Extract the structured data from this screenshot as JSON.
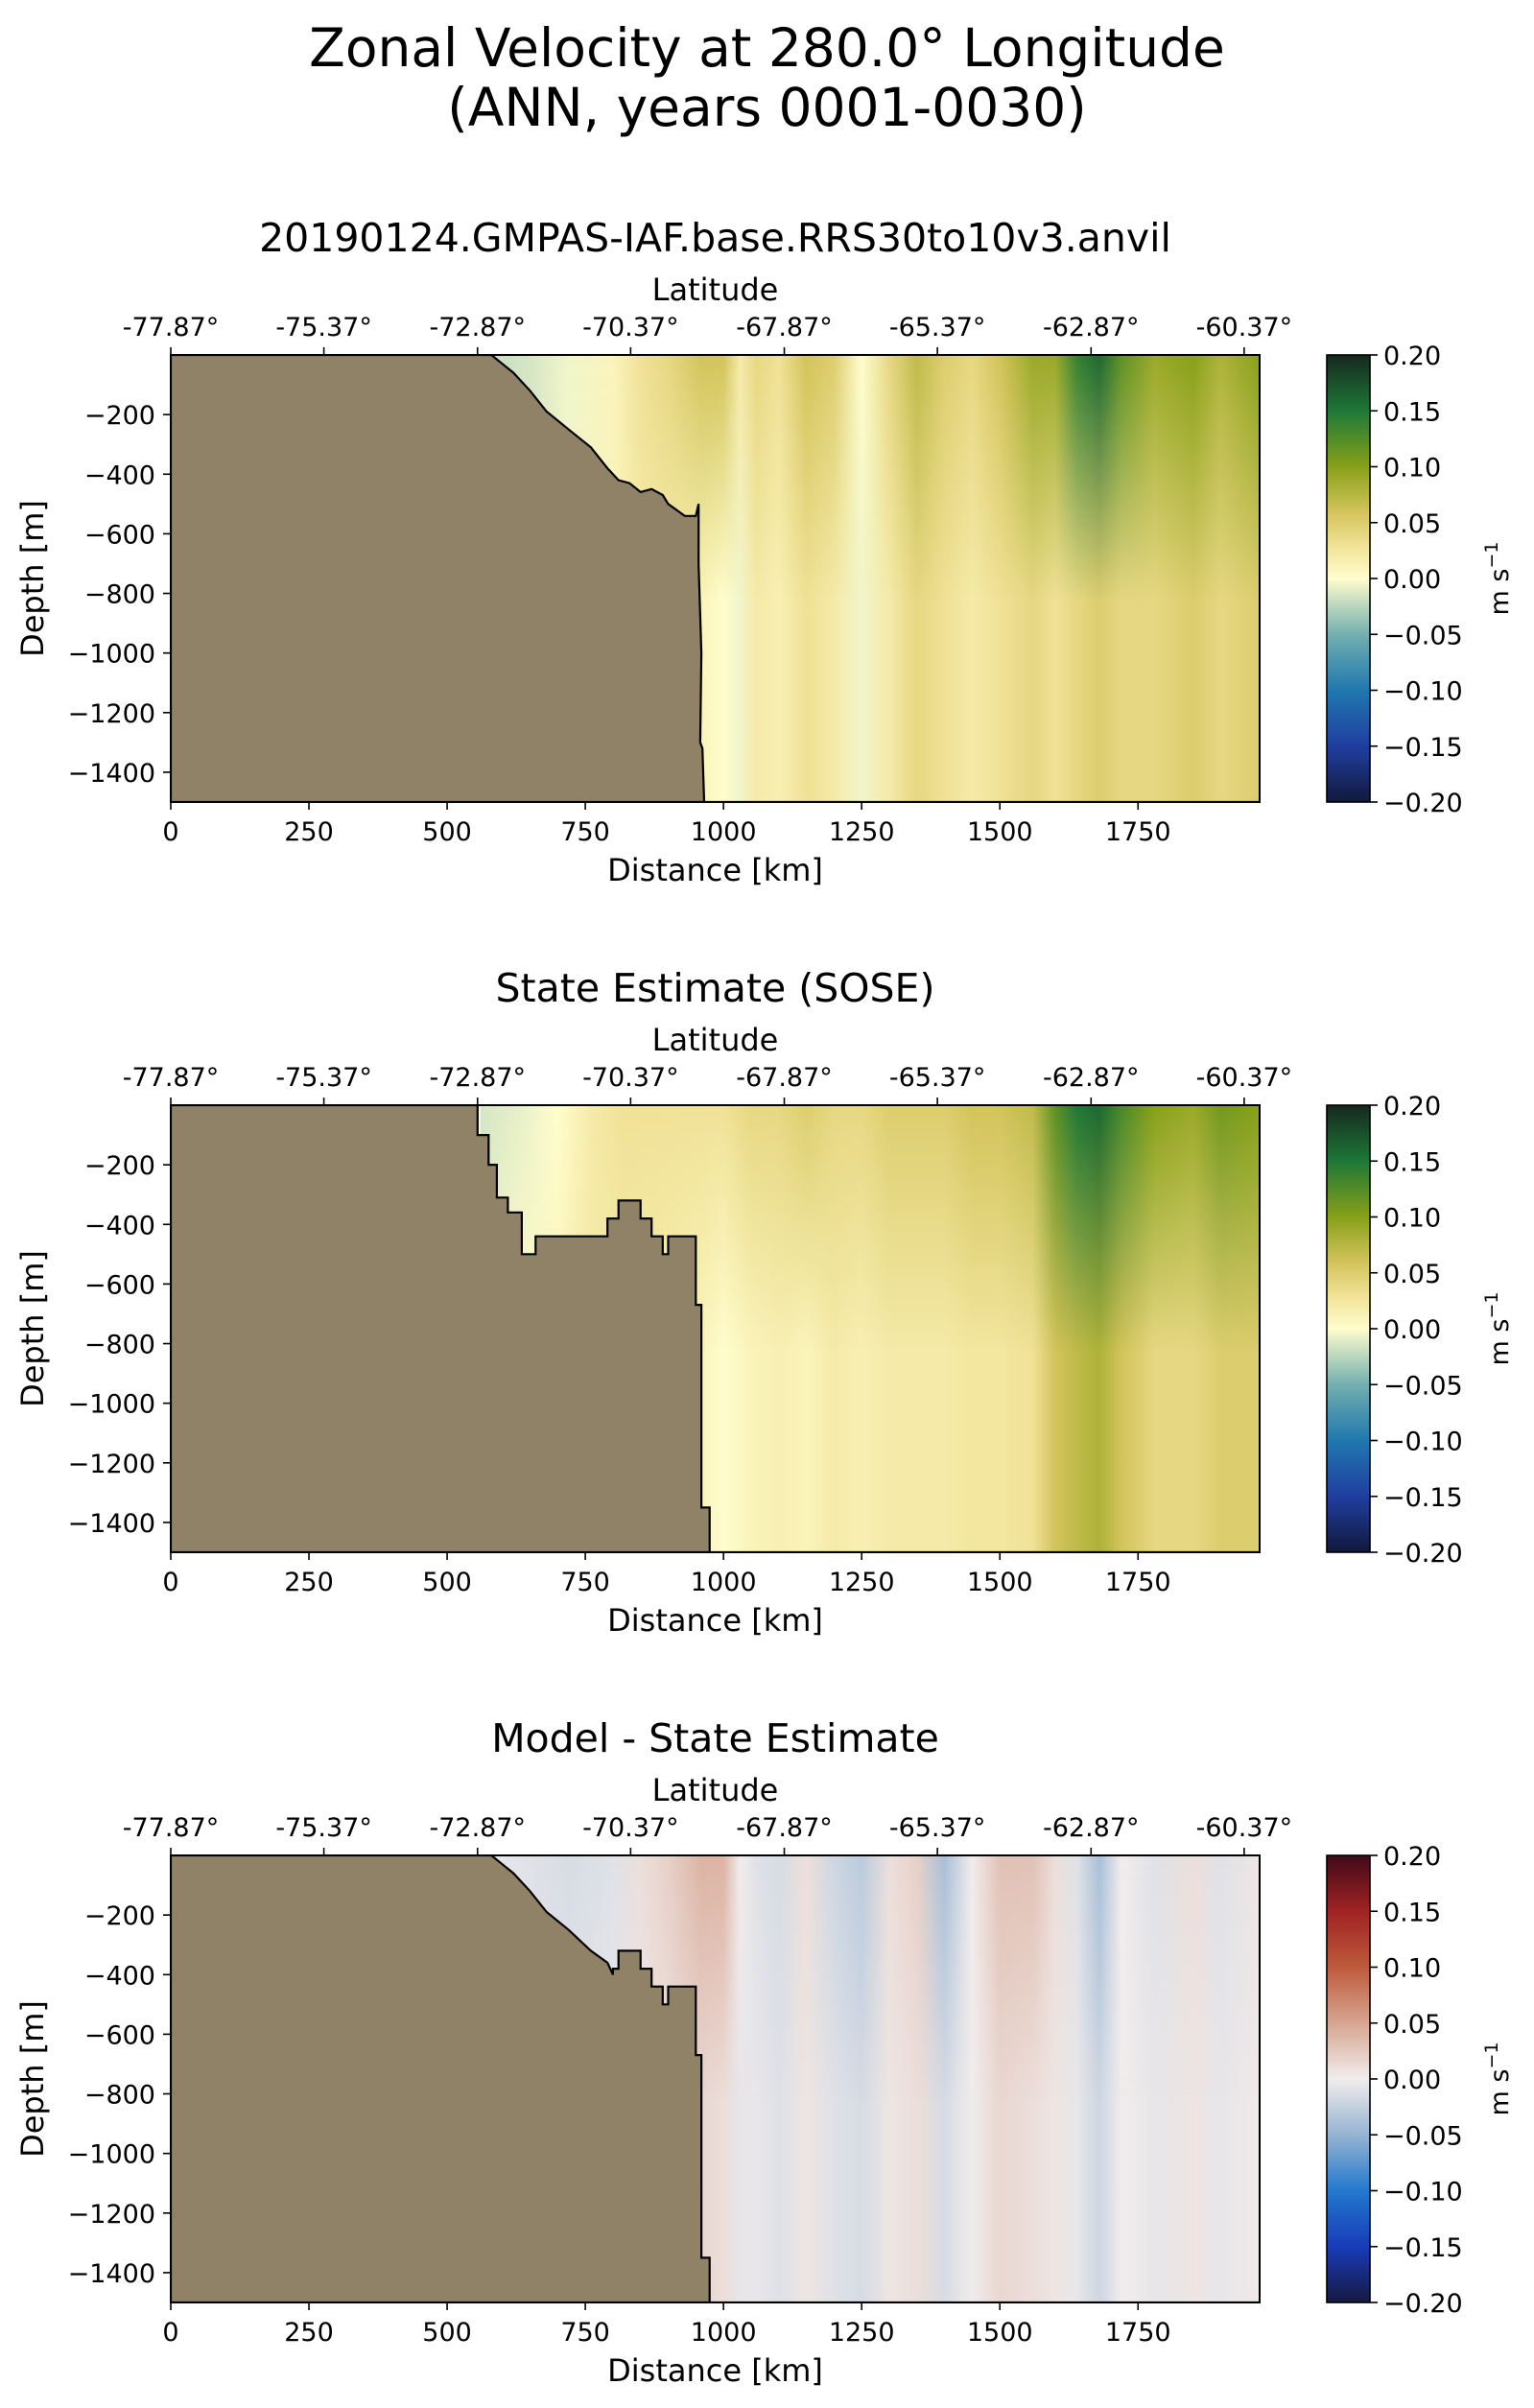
{
  "figure": {
    "title_line1": "Zonal Velocity at 280.0° Longitude",
    "title_line2": "(ANN, years 0001-0030)"
  },
  "chart_data": [
    {
      "type": "heatmap",
      "title": "20190124.GMPAS-IAF.base.RRS30to10v3.anvil",
      "xlabel": "Distance [km]",
      "ylabel": "Depth [m]",
      "top_xlabel": "Latitude",
      "xlim": [
        0,
        1970
      ],
      "ylim": [
        -1500,
        0
      ],
      "xticks": [
        0,
        250,
        500,
        750,
        1000,
        1250,
        1500,
        1750
      ],
      "xtick_labels": [
        "0",
        "250",
        "500",
        "750",
        "1000",
        "1250",
        "1500",
        "1750"
      ],
      "yticks": [
        -200,
        -400,
        -600,
        -800,
        -1000,
        -1200,
        -1400
      ],
      "ytick_labels": [
        "−200",
        "−400",
        "−600",
        "−800",
        "−1000",
        "−1200",
        "−1400"
      ],
      "top_ticks_km": [
        0,
        277,
        555,
        832,
        1110,
        1387,
        1665,
        1942
      ],
      "top_tick_labels": [
        "-77.87°",
        "-75.37°",
        "-72.87°",
        "-70.37°",
        "-67.87°",
        "-65.37°",
        "-62.87°",
        "-60.37°"
      ],
      "colorbar": {
        "label": "m s",
        "label_sup": "−1",
        "range": [
          -0.2,
          0.2
        ],
        "colormap": "delta",
        "ticks": [
          0.2,
          0.15,
          0.1,
          0.05,
          0.0,
          -0.05,
          -0.1,
          -0.15,
          -0.2
        ],
        "tick_labels": [
          "0.20",
          "0.15",
          "0.10",
          "0.05",
          "0.00",
          "−0.05",
          "−0.10",
          "−0.15",
          "−0.20"
        ]
      },
      "land_color": "#8f8267",
      "field_x_km": [
        580,
        650,
        720,
        800,
        850,
        900,
        960,
        1000,
        1030,
        1060,
        1100,
        1150,
        1200,
        1250,
        1300,
        1350,
        1400,
        1450,
        1500,
        1560,
        1600,
        1640,
        1680,
        1720,
        1780,
        1850,
        1900,
        1970
      ],
      "field_surface_ms": [
        -0.02,
        -0.015,
        -0.005,
        0.01,
        0.03,
        0.04,
        0.06,
        0.06,
        0.02,
        0.04,
        0.03,
        0.06,
        0.05,
        0.0,
        0.04,
        0.07,
        0.05,
        0.04,
        0.06,
        0.09,
        0.09,
        0.14,
        0.16,
        0.12,
        0.09,
        0.1,
        0.08,
        0.1
      ],
      "field_deep_ms": [
        -0.02,
        -0.015,
        -0.005,
        0.01,
        0.02,
        0.02,
        0.01,
        0.0,
        -0.005,
        0.02,
        0.015,
        0.03,
        0.02,
        -0.005,
        0.02,
        0.04,
        0.03,
        0.02,
        0.03,
        0.04,
        0.03,
        0.04,
        0.05,
        0.04,
        0.04,
        0.05,
        0.04,
        0.05
      ],
      "bathymetry_km": [
        0,
        580,
        600,
        620,
        650,
        680,
        720,
        760,
        790,
        810,
        830,
        850,
        870,
        890,
        900,
        930,
        950,
        955,
        955,
        960,
        958,
        962,
        965,
        1970
      ],
      "bathymetry_depth_m": [
        0,
        0,
        -30,
        -60,
        -120,
        -190,
        -250,
        -310,
        -380,
        -420,
        -430,
        -460,
        -450,
        -470,
        -500,
        -540,
        -540,
        -500,
        -700,
        -1000,
        -1300,
        -1320,
        -1500,
        -1500
      ]
    },
    {
      "type": "heatmap",
      "title": "State Estimate (SOSE)",
      "xlabel": "Distance [km]",
      "ylabel": "Depth [m]",
      "top_xlabel": "Latitude",
      "xlim": [
        0,
        1970
      ],
      "ylim": [
        -1500,
        0
      ],
      "xticks": [
        0,
        250,
        500,
        750,
        1000,
        1250,
        1500,
        1750
      ],
      "xtick_labels": [
        "0",
        "250",
        "500",
        "750",
        "1000",
        "1250",
        "1500",
        "1750"
      ],
      "yticks": [
        -200,
        -400,
        -600,
        -800,
        -1000,
        -1200,
        -1400
      ],
      "ytick_labels": [
        "−200",
        "−400",
        "−600",
        "−800",
        "−1000",
        "−1200",
        "−1400"
      ],
      "top_ticks_km": [
        0,
        277,
        555,
        832,
        1110,
        1387,
        1665,
        1942
      ],
      "top_tick_labels": [
        "-77.87°",
        "-75.37°",
        "-72.87°",
        "-70.37°",
        "-67.87°",
        "-65.37°",
        "-62.87°",
        "-60.37°"
      ],
      "colorbar": {
        "label": "m s",
        "label_sup": "−1",
        "range": [
          -0.2,
          0.2
        ],
        "colormap": "delta",
        "ticks": [
          0.2,
          0.15,
          0.1,
          0.05,
          0.0,
          -0.05,
          -0.1,
          -0.15,
          -0.2
        ],
        "tick_labels": [
          "0.20",
          "0.15",
          "0.10",
          "0.05",
          "0.00",
          "−0.05",
          "−0.10",
          "−0.15",
          "−0.20"
        ]
      },
      "land_color": "#8f8267",
      "field_x_km": [
        560,
        620,
        700,
        760,
        820,
        900,
        960,
        1000,
        1050,
        1100,
        1150,
        1200,
        1250,
        1300,
        1350,
        1400,
        1450,
        1500,
        1560,
        1600,
        1640,
        1680,
        1720,
        1780,
        1850,
        1900,
        1970
      ],
      "field_surface_ms": [
        -0.015,
        -0.01,
        0.0,
        0.02,
        0.03,
        0.03,
        0.03,
        0.03,
        0.04,
        0.04,
        0.05,
        0.04,
        0.04,
        0.05,
        0.05,
        0.05,
        0.06,
        0.06,
        0.07,
        0.12,
        0.15,
        0.16,
        0.13,
        0.1,
        0.09,
        0.11,
        0.1
      ],
      "field_deep_ms": [
        -0.01,
        0.0,
        0.01,
        0.02,
        0.02,
        0.015,
        0.01,
        0.0,
        0.01,
        0.015,
        0.01,
        0.02,
        0.015,
        0.02,
        0.02,
        0.02,
        0.025,
        0.025,
        0.03,
        0.06,
        0.07,
        0.08,
        0.06,
        0.04,
        0.04,
        0.05,
        0.05
      ],
      "bathymetry_km": [
        0,
        555,
        555,
        575,
        575,
        590,
        590,
        610,
        610,
        635,
        635,
        660,
        660,
        790,
        790,
        810,
        810,
        850,
        850,
        870,
        870,
        890,
        890,
        900,
        900,
        950,
        950,
        960,
        960,
        975,
        975,
        1970
      ],
      "bathymetry_depth_m": [
        0,
        0,
        -100,
        -100,
        -200,
        -200,
        -310,
        -310,
        -360,
        -360,
        -500,
        -500,
        -440,
        -440,
        -380,
        -380,
        -320,
        -320,
        -380,
        -380,
        -440,
        -440,
        -500,
        -500,
        -440,
        -440,
        -670,
        -670,
        -1350,
        -1350,
        -1500,
        -1500
      ]
    },
    {
      "type": "heatmap",
      "title": "Model - State Estimate",
      "xlabel": "Distance [km]",
      "ylabel": "Depth [m]",
      "top_xlabel": "Latitude",
      "xlim": [
        0,
        1970
      ],
      "ylim": [
        -1500,
        0
      ],
      "xticks": [
        0,
        250,
        500,
        750,
        1000,
        1250,
        1500,
        1750
      ],
      "xtick_labels": [
        "0",
        "250",
        "500",
        "750",
        "1000",
        "1250",
        "1500",
        "1750"
      ],
      "yticks": [
        -200,
        -400,
        -600,
        -800,
        -1000,
        -1200,
        -1400
      ],
      "ytick_labels": [
        "−200",
        "−400",
        "−600",
        "−800",
        "−1000",
        "−1200",
        "−1400"
      ],
      "top_ticks_km": [
        0,
        277,
        555,
        832,
        1110,
        1387,
        1665,
        1942
      ],
      "top_tick_labels": [
        "-77.87°",
        "-75.37°",
        "-72.87°",
        "-70.37°",
        "-67.87°",
        "-65.37°",
        "-62.87°",
        "-60.37°"
      ],
      "colorbar": {
        "label": "m s",
        "label_sup": "−1",
        "range": [
          -0.2,
          0.2
        ],
        "colormap": "balance",
        "ticks": [
          0.2,
          0.15,
          0.1,
          0.05,
          0.0,
          -0.05,
          -0.1,
          -0.15,
          -0.2
        ],
        "tick_labels": [
          "0.20",
          "0.15",
          "0.10",
          "0.05",
          "0.00",
          "−0.05",
          "−0.10",
          "−0.15",
          "−0.20"
        ]
      },
      "land_color": "#8f8267",
      "field_x_km": [
        580,
        650,
        720,
        800,
        850,
        900,
        960,
        1000,
        1030,
        1060,
        1100,
        1150,
        1200,
        1250,
        1300,
        1350,
        1400,
        1450,
        1500,
        1560,
        1600,
        1640,
        1680,
        1720,
        1780,
        1850,
        1900,
        1970
      ],
      "field_surface_ms": [
        -0.005,
        -0.01,
        -0.015,
        -0.01,
        0.01,
        0.02,
        0.04,
        0.04,
        0.0,
        -0.01,
        -0.015,
        0.01,
        -0.02,
        -0.03,
        0.01,
        0.02,
        -0.04,
        0.0,
        0.03,
        0.03,
        0.01,
        -0.01,
        -0.04,
        0.0,
        -0.01,
        0.01,
        -0.01,
        0.005
      ],
      "field_deep_ms": [
        -0.003,
        -0.005,
        -0.008,
        -0.005,
        0.005,
        0.01,
        0.015,
        0.01,
        -0.005,
        -0.005,
        -0.01,
        0.005,
        -0.01,
        -0.015,
        0.005,
        0.01,
        -0.015,
        0.0,
        0.015,
        0.01,
        0.005,
        -0.005,
        -0.02,
        0.0,
        -0.005,
        0.005,
        -0.005,
        0.002
      ],
      "bathymetry_km": [
        0,
        580,
        600,
        620,
        650,
        680,
        720,
        760,
        790,
        800,
        800,
        810,
        810,
        850,
        850,
        870,
        870,
        890,
        890,
        900,
        900,
        950,
        950,
        960,
        960,
        975,
        975,
        1970
      ],
      "bathymetry_depth_m": [
        0,
        0,
        -30,
        -60,
        -120,
        -190,
        -250,
        -320,
        -360,
        -400,
        -380,
        -380,
        -320,
        -320,
        -380,
        -380,
        -440,
        -440,
        -500,
        -500,
        -440,
        -440,
        -670,
        -670,
        -1350,
        -1350,
        -1500,
        -1500
      ]
    }
  ]
}
